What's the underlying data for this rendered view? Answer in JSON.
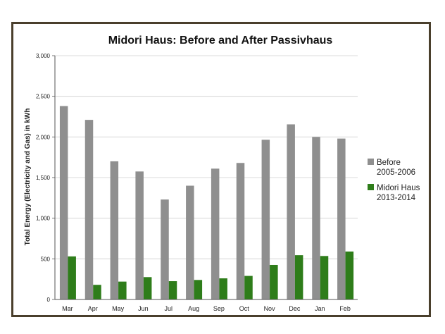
{
  "chart_data": {
    "type": "bar",
    "title": "Midori Haus:  Before and After Passivhaus",
    "xlabel": "",
    "ylabel": "Total Energy  (Electricity and Gas) in kWh",
    "categories": [
      "Mar",
      "Apr",
      "May",
      "Jun",
      "Jul",
      "Aug",
      "Sep",
      "Oct",
      "Nov",
      "Dec",
      "Jan",
      "Feb"
    ],
    "series": [
      {
        "name": [
          "Before",
          "2005-2006"
        ],
        "color": "#8f8f8f",
        "values": [
          2380,
          2210,
          1700,
          1575,
          1230,
          1400,
          1610,
          1680,
          1965,
          2155,
          2000,
          1980
        ]
      },
      {
        "name": [
          "Midori Haus",
          "2013-2014"
        ],
        "color": "#2e7d1a",
        "values": [
          530,
          180,
          220,
          275,
          225,
          240,
          260,
          290,
          425,
          545,
          535,
          590
        ]
      }
    ],
    "ylim": [
      0,
      3000
    ],
    "yticks": [
      "0",
      "500",
      "1,000",
      "1,500",
      "2,000",
      "2,500",
      "3,000"
    ],
    "ytick_values": [
      0,
      500,
      1000,
      1500,
      2000,
      2500,
      3000
    ],
    "grid": "horizontal",
    "legend_position": "right"
  }
}
